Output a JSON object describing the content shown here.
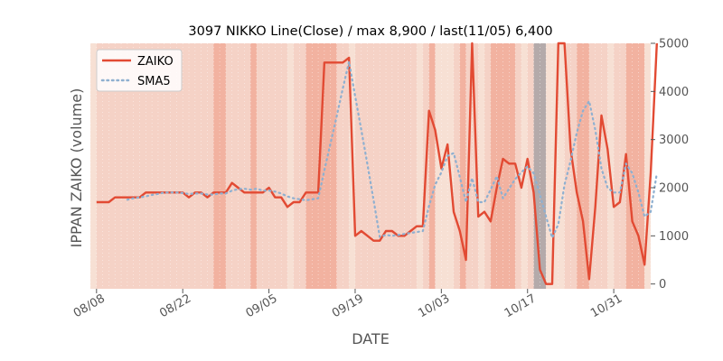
{
  "chart_data": {
    "type": "line",
    "title": "3097 NIKKO Line(Close) / max 8,900 / last(11/05) 6,400",
    "xlabel": "DATE",
    "ylabel": "IPPAN ZAIKO (volume)",
    "ylim": [
      -100,
      5000
    ],
    "y_axis_side": "right",
    "yticks": [
      0,
      1000,
      2000,
      3000,
      4000,
      5000
    ],
    "ytick_labels": [
      "0",
      "1000",
      "2000",
      "3000",
      "4000",
      "5000"
    ],
    "xticks": [
      {
        "x": "08/08",
        "label": "08/08"
      },
      {
        "x": "08/22",
        "label": "08/22"
      },
      {
        "x": "09/05",
        "label": "09/05"
      },
      {
        "x": "09/19",
        "label": "09/19"
      },
      {
        "x": "10/03",
        "label": "10/03"
      },
      {
        "x": "10/17",
        "label": "10/17"
      },
      {
        "x": "10/31",
        "label": "10/31"
      }
    ],
    "x_range": [
      "08/07",
      "11/06"
    ],
    "grid": false,
    "legend_position": "upper-left",
    "colors": {
      "zaiko": "#e24a33",
      "sma5": "#8fb0d0",
      "background": "#e5e5e5",
      "frame_fill": "#f5d2c6",
      "band_light": "#f7e0d4",
      "band_mid": "#f2b2a0",
      "band_dark": "#b4aaaa"
    },
    "bands": [
      {
        "from": "08/07",
        "to": "08/08",
        "level": "light"
      },
      {
        "from": "08/27",
        "to": "08/29",
        "level": "mid"
      },
      {
        "from": "09/02",
        "to": "09/03",
        "level": "mid"
      },
      {
        "from": "09/08",
        "to": "09/09",
        "level": "light"
      },
      {
        "from": "09/11",
        "to": "09/16",
        "level": "mid"
      },
      {
        "from": "09/18",
        "to": "09/19",
        "level": "light"
      },
      {
        "from": "09/29",
        "to": "09/30",
        "level": "light"
      },
      {
        "from": "10/01",
        "to": "10/02",
        "level": "mid"
      },
      {
        "from": "10/02",
        "to": "10/05",
        "level": "light"
      },
      {
        "from": "10/06",
        "to": "10/07",
        "level": "mid"
      },
      {
        "from": "10/09",
        "to": "10/10",
        "level": "light"
      },
      {
        "from": "10/11",
        "to": "10/15",
        "level": "mid"
      },
      {
        "from": "10/16",
        "to": "10/17",
        "level": "light"
      },
      {
        "from": "10/18",
        "to": "10/20",
        "level": "dark"
      },
      {
        "from": "10/20",
        "to": "10/23",
        "level": "light"
      },
      {
        "from": "10/25",
        "to": "10/27",
        "level": "mid"
      },
      {
        "from": "10/30",
        "to": "10/31",
        "level": "light"
      },
      {
        "from": "11/02",
        "to": "11/05",
        "level": "mid"
      },
      {
        "from": "11/05",
        "to": "11/06",
        "level": "light"
      }
    ],
    "series": [
      {
        "name": "ZAIKO",
        "style": "solid",
        "points": [
          [
            "08/08",
            1700
          ],
          [
            "08/09",
            1700
          ],
          [
            "08/10",
            1700
          ],
          [
            "08/11",
            1800
          ],
          [
            "08/12",
            1800
          ],
          [
            "08/13",
            1800
          ],
          [
            "08/14",
            1800
          ],
          [
            "08/15",
            1800
          ],
          [
            "08/16",
            1900
          ],
          [
            "08/17",
            1900
          ],
          [
            "08/18",
            1900
          ],
          [
            "08/19",
            1900
          ],
          [
            "08/20",
            1900
          ],
          [
            "08/21",
            1900
          ],
          [
            "08/22",
            1900
          ],
          [
            "08/23",
            1800
          ],
          [
            "08/24",
            1900
          ],
          [
            "08/25",
            1900
          ],
          [
            "08/26",
            1800
          ],
          [
            "08/27",
            1900
          ],
          [
            "08/28",
            1900
          ],
          [
            "08/29",
            1900
          ],
          [
            "08/30",
            2100
          ],
          [
            "08/31",
            2000
          ],
          [
            "09/01",
            1900
          ],
          [
            "09/02",
            1900
          ],
          [
            "09/03",
            1900
          ],
          [
            "09/04",
            1900
          ],
          [
            "09/05",
            2000
          ],
          [
            "09/06",
            1800
          ],
          [
            "09/07",
            1800
          ],
          [
            "09/08",
            1600
          ],
          [
            "09/09",
            1700
          ],
          [
            "09/10",
            1700
          ],
          [
            "09/11",
            1900
          ],
          [
            "09/12",
            1900
          ],
          [
            "09/13",
            1900
          ],
          [
            "09/14",
            4600
          ],
          [
            "09/15",
            4600
          ],
          [
            "09/16",
            4600
          ],
          [
            "09/17",
            4600
          ],
          [
            "09/18",
            4700
          ],
          [
            "09/19",
            1000
          ],
          [
            "09/20",
            1100
          ],
          [
            "09/21",
            1000
          ],
          [
            "09/22",
            900
          ],
          [
            "09/23",
            900
          ],
          [
            "09/24",
            1100
          ],
          [
            "09/25",
            1100
          ],
          [
            "09/26",
            1000
          ],
          [
            "09/27",
            1000
          ],
          [
            "09/28",
            1100
          ],
          [
            "09/29",
            1200
          ],
          [
            "09/30",
            1200
          ],
          [
            "10/01",
            3600
          ],
          [
            "10/02",
            3200
          ],
          [
            "10/03",
            2400
          ],
          [
            "10/04",
            2900
          ],
          [
            "10/05",
            1500
          ],
          [
            "10/06",
            1100
          ],
          [
            "10/07",
            500
          ],
          [
            "10/08",
            5000
          ],
          [
            "10/09",
            1400
          ],
          [
            "10/10",
            1500
          ],
          [
            "10/11",
            1300
          ],
          [
            "10/12",
            2000
          ],
          [
            "10/13",
            2600
          ],
          [
            "10/14",
            2500
          ],
          [
            "10/15",
            2500
          ],
          [
            "10/16",
            2000
          ],
          [
            "10/17",
            2600
          ],
          [
            "10/18",
            1900
          ],
          [
            "10/19",
            300
          ],
          [
            "10/20",
            0
          ],
          [
            "10/21",
            0
          ],
          [
            "10/22",
            5000
          ],
          [
            "10/23",
            5000
          ],
          [
            "10/24",
            2800
          ],
          [
            "10/25",
            1900
          ],
          [
            "10/26",
            1300
          ],
          [
            "10/27",
            100
          ],
          [
            "10/28",
            1600
          ],
          [
            "10/29",
            3500
          ],
          [
            "10/30",
            2800
          ],
          [
            "10/31",
            1600
          ],
          [
            "11/01",
            1700
          ],
          [
            "11/02",
            2700
          ],
          [
            "11/03",
            1300
          ],
          [
            "11/04",
            1000
          ],
          [
            "11/05",
            400
          ],
          [
            "11/06",
            2300
          ],
          [
            "11/07",
            5000
          ]
        ]
      },
      {
        "name": "SMA5",
        "style": "dotted",
        "points": [
          [
            "08/13",
            1750
          ],
          [
            "08/14",
            1780
          ],
          [
            "08/15",
            1800
          ],
          [
            "08/16",
            1820
          ],
          [
            "08/17",
            1850
          ],
          [
            "08/18",
            1870
          ],
          [
            "08/19",
            1900
          ],
          [
            "08/20",
            1900
          ],
          [
            "08/21",
            1900
          ],
          [
            "08/22",
            1890
          ],
          [
            "08/23",
            1870
          ],
          [
            "08/24",
            1880
          ],
          [
            "08/25",
            1880
          ],
          [
            "08/26",
            1860
          ],
          [
            "08/27",
            1860
          ],
          [
            "08/28",
            1880
          ],
          [
            "08/29",
            1880
          ],
          [
            "08/30",
            1940
          ],
          [
            "08/31",
            1970
          ],
          [
            "09/01",
            1980
          ],
          [
            "09/02",
            1960
          ],
          [
            "09/03",
            1980
          ],
          [
            "09/04",
            1940
          ],
          [
            "09/05",
            1940
          ],
          [
            "09/06",
            1920
          ],
          [
            "09/07",
            1880
          ],
          [
            "09/08",
            1820
          ],
          [
            "09/09",
            1780
          ],
          [
            "09/10",
            1760
          ],
          [
            "09/11",
            1740
          ],
          [
            "09/12",
            1760
          ],
          [
            "09/13",
            1780
          ],
          [
            "09/14",
            2360
          ],
          [
            "09/15",
            2920
          ],
          [
            "09/16",
            3480
          ],
          [
            "09/17",
            4060
          ],
          [
            "09/18",
            4620
          ],
          [
            "09/19",
            3900
          ],
          [
            "09/20",
            3200
          ],
          [
            "09/21",
            2480
          ],
          [
            "09/22",
            1740
          ],
          [
            "09/23",
            980
          ],
          [
            "09/24",
            1020
          ],
          [
            "09/25",
            1000
          ],
          [
            "09/26",
            1020
          ],
          [
            "09/27",
            1040
          ],
          [
            "09/28",
            1060
          ],
          [
            "09/29",
            1080
          ],
          [
            "09/30",
            1100
          ],
          [
            "10/01",
            1620
          ],
          [
            "10/02",
            2060
          ],
          [
            "10/03",
            2320
          ],
          [
            "10/04",
            2660
          ],
          [
            "10/05",
            2720
          ],
          [
            "10/06",
            2220
          ],
          [
            "10/07",
            1700
          ],
          [
            "10/08",
            2200
          ],
          [
            "10/09",
            1700
          ],
          [
            "10/10",
            1700
          ],
          [
            "10/11",
            1960
          ],
          [
            "10/12",
            2240
          ],
          [
            "10/13",
            1780
          ],
          [
            "10/14",
            1980
          ],
          [
            "10/15",
            2180
          ],
          [
            "10/16",
            2320
          ],
          [
            "10/17",
            2440
          ],
          [
            "10/18",
            2300
          ],
          [
            "10/19",
            1860
          ],
          [
            "10/20",
            1400
          ],
          [
            "10/21",
            960
          ],
          [
            "10/22",
            1240
          ],
          [
            "10/23",
            2060
          ],
          [
            "10/24",
            2560
          ],
          [
            "10/25",
            3140
          ],
          [
            "10/26",
            3600
          ],
          [
            "10/27",
            3800
          ],
          [
            "10/28",
            3200
          ],
          [
            "10/29",
            2400
          ],
          [
            "10/30",
            2000
          ],
          [
            "10/31",
            1900
          ],
          [
            "11/01",
            1900
          ],
          [
            "11/02",
            2500
          ],
          [
            "11/03",
            2300
          ],
          [
            "11/04",
            1900
          ],
          [
            "11/05",
            1400
          ],
          [
            "11/06",
            1500
          ],
          [
            "11/07",
            2300
          ]
        ]
      }
    ]
  }
}
